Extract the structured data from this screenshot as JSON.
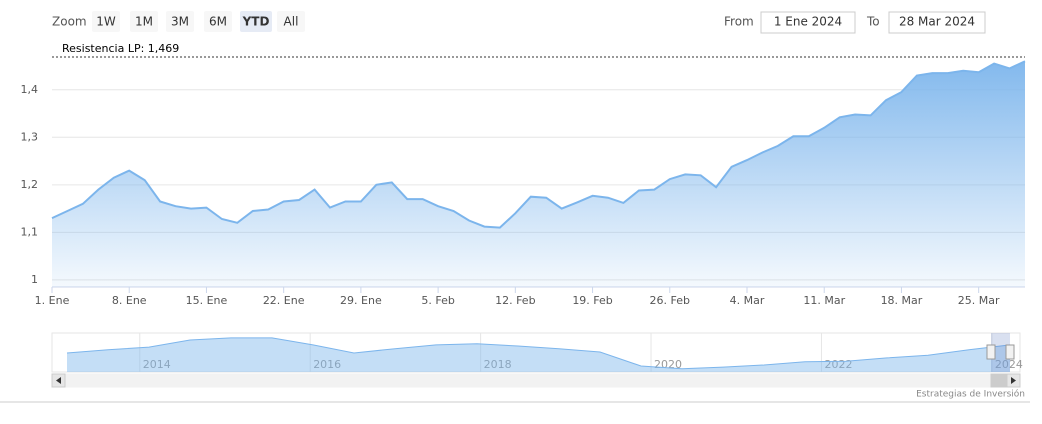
{
  "chart_data": {
    "type": "area",
    "categories": [
      "1. Ene",
      null,
      null,
      null,
      null,
      "8. Ene",
      null,
      null,
      null,
      null,
      "15. Ene",
      null,
      null,
      null,
      null,
      "22. Ene",
      null,
      null,
      null,
      null,
      "29. Ene",
      null,
      null,
      null,
      null,
      "5. Feb",
      null,
      null,
      null,
      null,
      "12. Feb",
      null,
      null,
      null,
      null,
      "19. Feb",
      null,
      null,
      null,
      null,
      "26. Feb",
      null,
      null,
      null,
      null,
      "4. Mar",
      null,
      null,
      null,
      null,
      "11. Mar",
      null,
      null,
      null,
      null,
      "18. Mar",
      null,
      null,
      null,
      null,
      "25. Mar",
      null,
      null,
      null
    ],
    "values": [
      1.13,
      1.145,
      1.16,
      1.19,
      1.215,
      1.23,
      1.21,
      1.165,
      1.155,
      1.15,
      1.152,
      1.128,
      1.12,
      1.145,
      1.148,
      1.165,
      1.168,
      1.19,
      1.152,
      1.165,
      1.165,
      1.2,
      1.205,
      1.17,
      1.17,
      1.155,
      1.145,
      1.125,
      1.112,
      1.11,
      1.14,
      1.175,
      1.173,
      1.15,
      1.163,
      1.177,
      1.173,
      1.162,
      1.188,
      1.19,
      1.212,
      1.222,
      1.22,
      1.195,
      1.238,
      1.252,
      1.268,
      1.282,
      1.302,
      1.302,
      1.32,
      1.342,
      1.348,
      1.346,
      1.378,
      1.395,
      1.43,
      1.435,
      1.435,
      1.44,
      1.437,
      1.455,
      1.445,
      1.46
    ],
    "color": "#7cb5ec",
    "ylim": [
      0.985,
      1.49
    ],
    "yticks": [
      1,
      {
        "value": 1.1,
        "label": "1,1"
      },
      {
        "value": 1.2,
        "label": "1,2"
      },
      {
        "value": 1.3,
        "label": "1,3"
      },
      {
        "value": 1.4,
        "label": "1,4"
      }
    ],
    "grid": true,
    "plot_lines": [
      {
        "value": 1.469,
        "label": "Resistencia LP: 1,469"
      }
    ],
    "navigator": {
      "values": [
        1.25,
        1.31,
        1.36,
        1.49,
        1.53,
        1.53,
        1.4,
        1.25,
        1.33,
        1.4,
        1.42,
        1.38,
        1.33,
        1.27,
        1.01,
        0.96,
        0.99,
        1.03,
        1.09,
        1.1,
        1.16,
        1.21,
        1.31,
        1.4
      ],
      "xlim": [
        2012.97,
        2024.33
      ],
      "xticks": [
        2014,
        2016,
        2018,
        2020,
        2022,
        2024
      ],
      "ylim": [
        0.9,
        1.62
      ]
    },
    "credits": "Estrategias de Inversión"
  },
  "range_selector": {
    "label": "Zoom",
    "buttons": [
      "1W",
      "1M",
      "3M",
      "6M",
      "YTD",
      "All"
    ],
    "selected": 4,
    "from_label": "From",
    "from": "1 Ene 2024",
    "to_label": "To",
    "to": "28 Mar 2024"
  }
}
